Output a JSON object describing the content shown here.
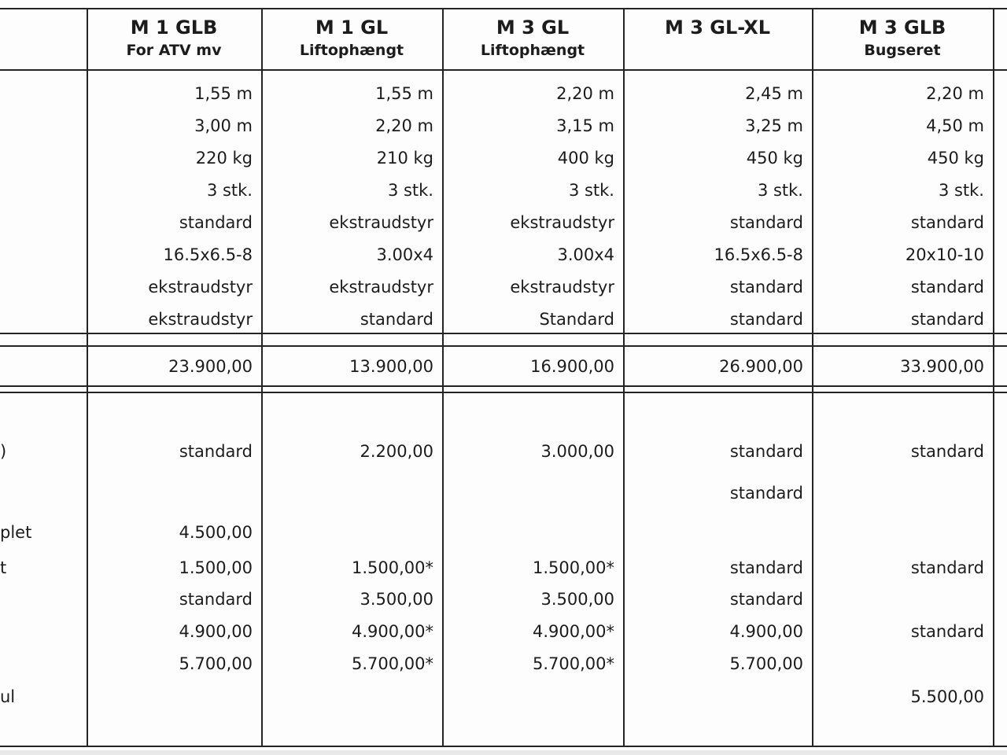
{
  "table": {
    "columns": [
      {
        "title": "",
        "subtitle": ""
      },
      {
        "title": "M 1 GLB",
        "subtitle": "For ATV mv"
      },
      {
        "title": "M 1 GL",
        "subtitle": "Liftophængt"
      },
      {
        "title": "M 3 GL",
        "subtitle": "Liftophængt"
      },
      {
        "title": "M 3 GL-XL",
        "subtitle": ""
      },
      {
        "title": "M 3 GLB",
        "subtitle": "Bugseret"
      }
    ],
    "spec_rows": [
      {
        "label": "",
        "values": [
          "1,55 m",
          "1,55 m",
          "2,20 m",
          "2,45 m",
          "2,20 m"
        ]
      },
      {
        "label": "",
        "values": [
          "3,00 m",
          "2,20 m",
          "3,15 m",
          "3,25 m",
          "4,50 m"
        ]
      },
      {
        "label": "",
        "values": [
          "220 kg",
          "210 kg",
          "400 kg",
          "450 kg",
          "450 kg"
        ]
      },
      {
        "label": "",
        "values": [
          "3 stk.",
          "3 stk.",
          "3 stk.",
          "3 stk.",
          "3 stk."
        ]
      },
      {
        "label": "",
        "values": [
          "standard",
          "ekstraudstyr",
          "ekstraudstyr",
          "standard",
          "standard"
        ]
      },
      {
        "label": "",
        "values": [
          "16.5x6.5-8",
          "3.00x4",
          "3.00x4",
          "16.5x6.5-8",
          "20x10-10"
        ]
      },
      {
        "label": "",
        "values": [
          "ekstraudstyr",
          "ekstraudstyr",
          "ekstraudstyr",
          "standard",
          "standard"
        ]
      },
      {
        "label": "",
        "values": [
          "ekstraudstyr",
          "standard",
          "Standard",
          "standard",
          "standard"
        ]
      }
    ],
    "price_row": {
      "label": "",
      "values": [
        "23.900,00",
        "13.900,00",
        "16.900,00",
        "26.900,00",
        "33.900,00"
      ]
    },
    "option_rows": [
      {
        "label": "",
        "values": [
          "",
          "",
          "",
          "",
          ""
        ]
      },
      {
        "label": ")",
        "values": [
          "standard",
          "2.200,00",
          "3.000,00",
          "standard",
          "standard"
        ]
      },
      {
        "label": "",
        "values": [
          "",
          "",
          "",
          "standard",
          ""
        ]
      },
      {
        "label": "plet",
        "values": [
          "4.500,00",
          "",
          "",
          "",
          ""
        ]
      },
      {
        "label": "t",
        "values": [
          "1.500,00",
          "1.500,00*",
          "1.500,00*",
          "standard",
          "standard"
        ]
      },
      {
        "label": "",
        "values": [
          "standard",
          "3.500,00",
          "3.500,00",
          "standard",
          ""
        ]
      },
      {
        "label": "",
        "values": [
          "4.900,00",
          "4.900,00*",
          "4.900,00*",
          "4.900,00",
          "standard"
        ]
      },
      {
        "label": "",
        "values": [
          "5.700,00",
          "5.700,00*",
          "5.700,00*",
          "5.700,00",
          ""
        ]
      },
      {
        "label": "ul",
        "values": [
          "",
          "",
          "",
          "",
          "5.500,00"
        ]
      }
    ],
    "colors": {
      "border": "#242424",
      "text": "#1c1c1c",
      "background": "#fdfdfd"
    }
  }
}
